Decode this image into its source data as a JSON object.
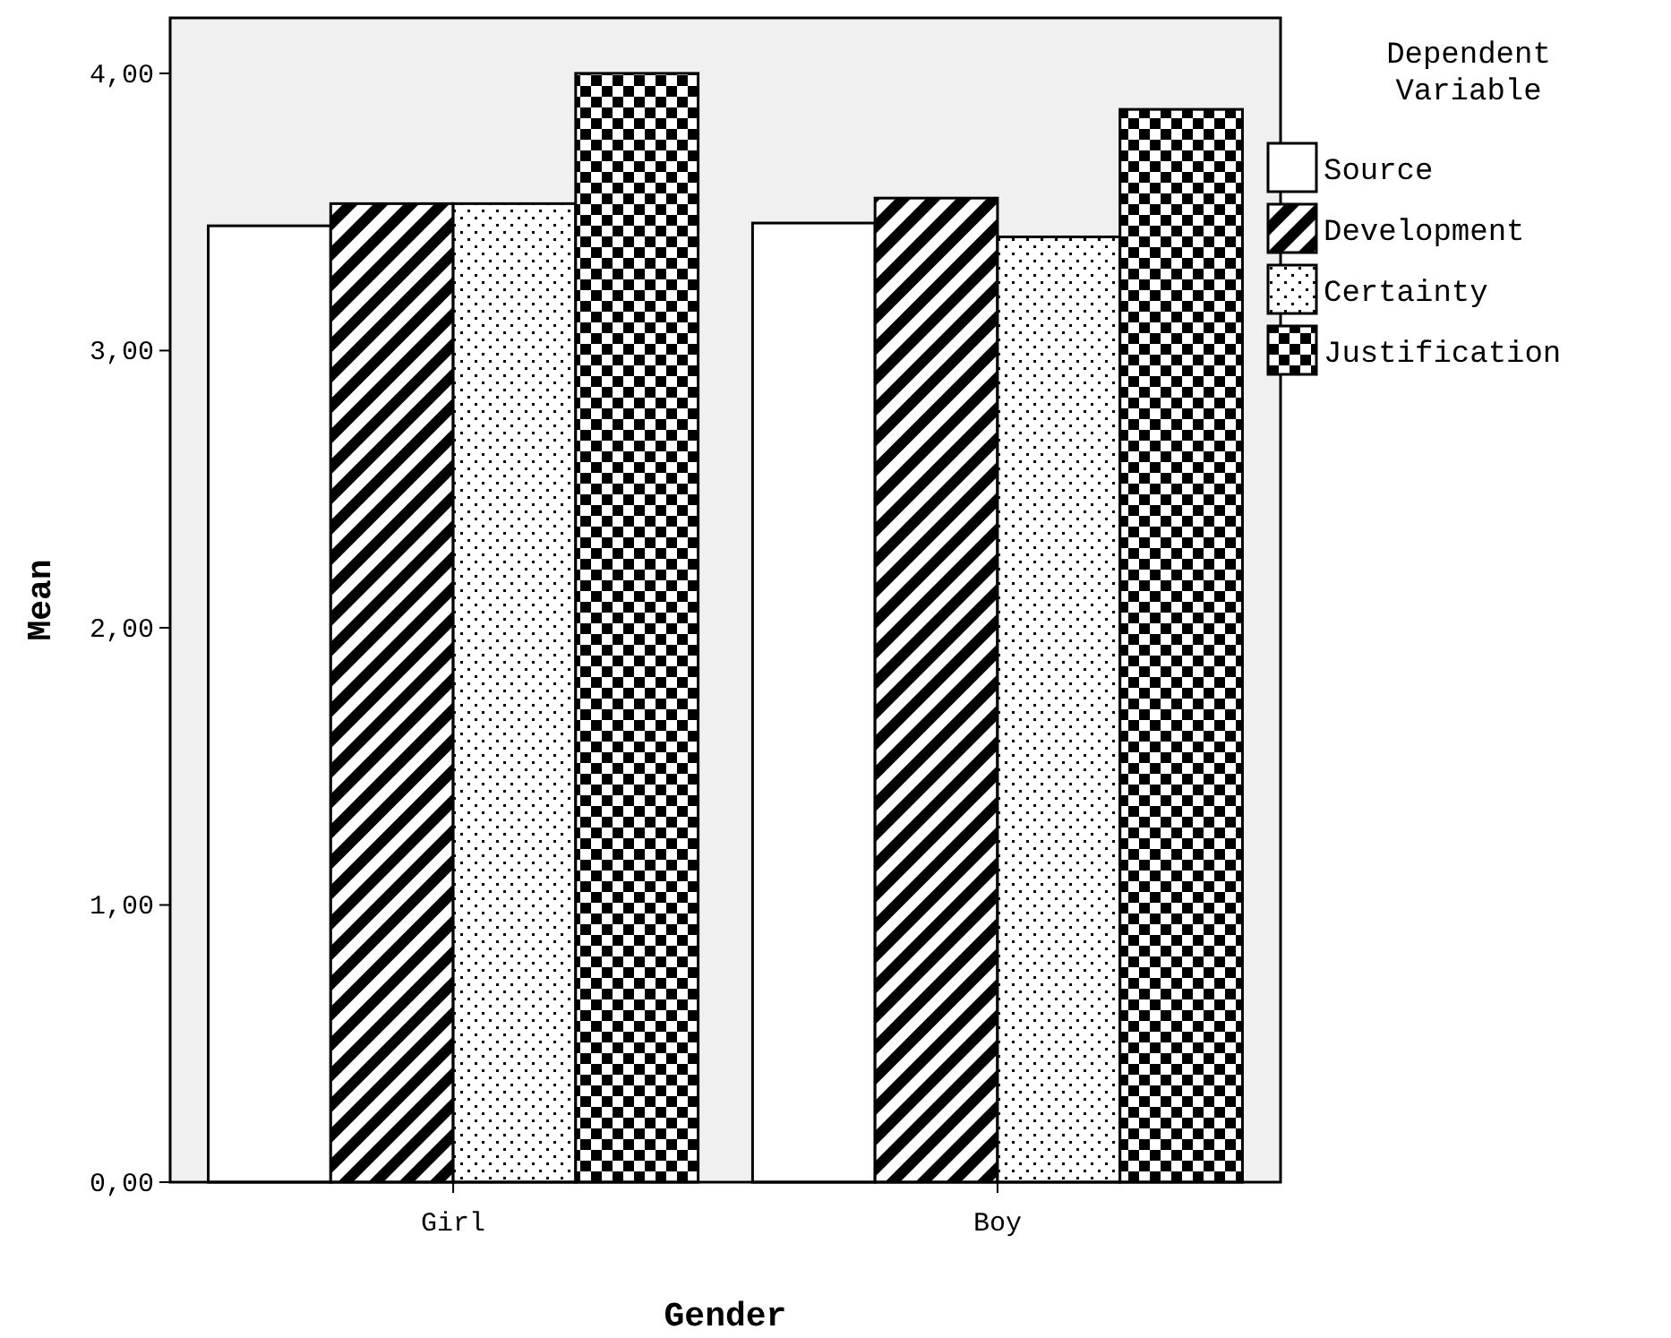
{
  "chart_data": {
    "type": "bar",
    "xlabel": "Gender",
    "ylabel": "Mean",
    "legend_title": "Dependent Variable",
    "categories": [
      "Girl",
      "Boy"
    ],
    "series": [
      {
        "name": "Source",
        "color": "#ffffff",
        "values": [
          3.45,
          3.46
        ]
      },
      {
        "name": "Development",
        "color": "#000000",
        "values": [
          3.53,
          3.55
        ]
      },
      {
        "name": "Certainty",
        "color": "#000000",
        "values": [
          3.53,
          3.41
        ]
      },
      {
        "name": "Justification",
        "color": "#000000",
        "values": [
          4.0,
          3.87
        ]
      }
    ],
    "ylim": [
      0,
      4.2
    ],
    "yticks": [
      {
        "value": 0,
        "label": "0,00"
      },
      {
        "value": 1,
        "label": "1,00"
      },
      {
        "value": 2,
        "label": "2,00"
      },
      {
        "value": 3,
        "label": "3,00"
      },
      {
        "value": 4,
        "label": "4,00"
      }
    ],
    "grid": false,
    "legend": "right"
  }
}
